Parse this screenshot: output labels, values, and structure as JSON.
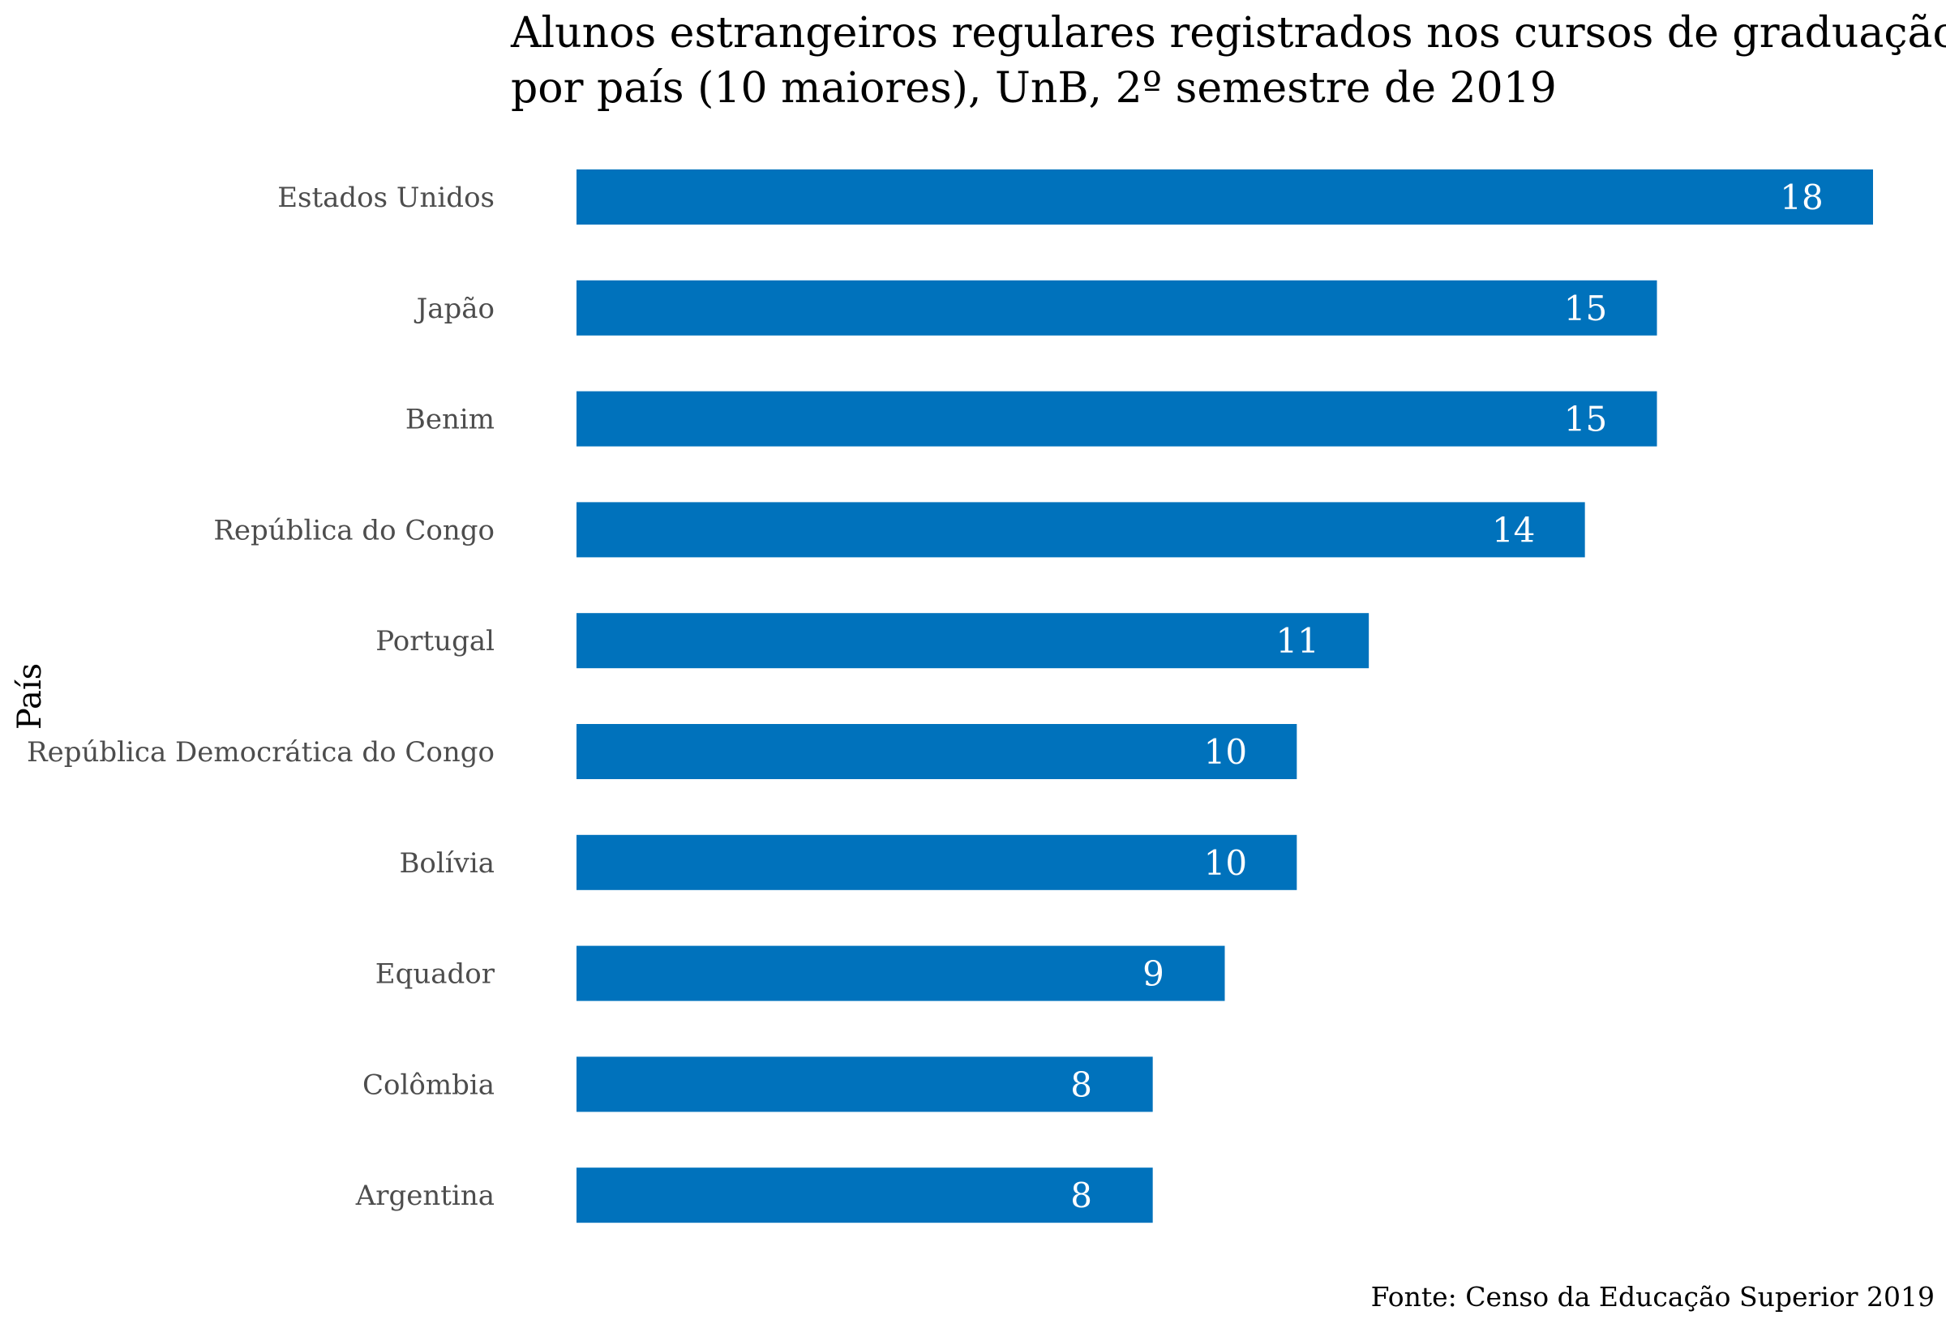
{
  "chart_data": {
    "type": "bar",
    "orientation": "horizontal",
    "title_lines": [
      "Alunos estrangeiros regulares registrados nos cursos de graduação,",
      "por país (10 maiores), UnB, 2º semestre de 2019"
    ],
    "ylabel": "País",
    "xlabel": "",
    "caption": "Fonte: Censo da Educação Superior 2019",
    "categories": [
      "Estados Unidos",
      "Japão",
      "Benim",
      "República do Congo",
      "Portugal",
      "República Democrática do Congo",
      "Bolívia",
      "Equador",
      "Colômbia",
      "Argentina"
    ],
    "values": [
      18,
      15,
      15,
      14,
      11,
      10,
      10,
      9,
      8,
      8
    ],
    "xlim": [
      0,
      18
    ],
    "bar_color": "#0072BC",
    "label_color": "#FFFFFF",
    "grid": false,
    "legend": "none"
  }
}
